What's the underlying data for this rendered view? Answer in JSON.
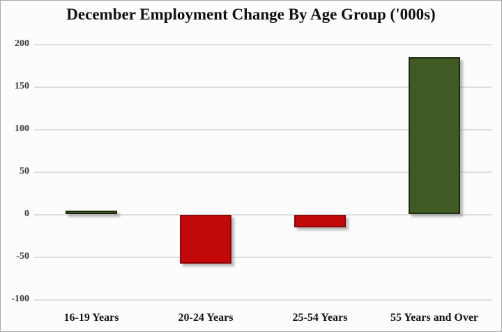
{
  "chart_data": {
    "type": "bar",
    "title": "December Employment Change By Age Group ('000s)",
    "categories": [
      "16-19 Years",
      "20-24 Years",
      "25-54 Years",
      "55 Years and Over"
    ],
    "values": [
      4,
      -57,
      -15,
      184
    ],
    "ylim": [
      -100,
      200
    ],
    "yticks": [
      200,
      150,
      100,
      50,
      0,
      -50,
      -100
    ],
    "xlabel": "",
    "ylabel": "",
    "grid": true,
    "legend": "none",
    "colors": {
      "positive_fill": "#3f5a23",
      "positive_border": "#1c290e",
      "negative_fill": "#c20808",
      "negative_border": "#8c0606",
      "gridline": "#dedede",
      "title_text": "#101010",
      "tick_text": "#3d3d3d"
    }
  }
}
